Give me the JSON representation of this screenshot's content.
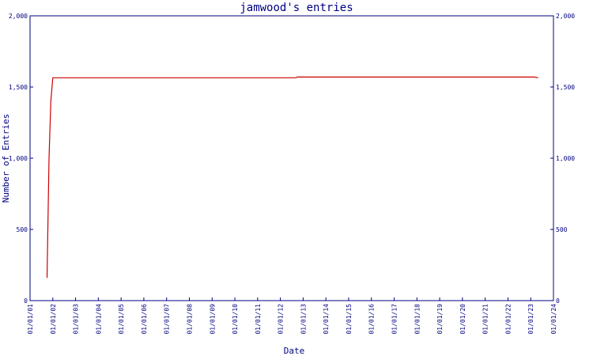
{
  "chart_data": {
    "type": "line",
    "title": "jamwood's entries",
    "xlabel": "Date",
    "ylabel": "Number of Entries",
    "x_tick_labels": [
      "01/01/01",
      "01/01/02",
      "01/01/03",
      "01/01/04",
      "01/01/05",
      "01/01/06",
      "01/01/07",
      "01/01/08",
      "01/01/09",
      "01/01/10",
      "01/01/11",
      "01/01/12",
      "01/01/13",
      "01/01/14",
      "01/01/15",
      "01/01/16",
      "01/01/17",
      "01/01/18",
      "01/01/19",
      "01/01/20",
      "01/01/21",
      "01/01/22",
      "01/01/23",
      "01/01/24"
    ],
    "y_tick_labels": [
      "0",
      "500",
      "1,000",
      "1,500",
      "2,000"
    ],
    "y_ticks": [
      0,
      500,
      1000,
      1500,
      2000
    ],
    "ylim": [
      0,
      2000
    ],
    "xlim": [
      "2001-01-01",
      "2024-01-01"
    ],
    "grid": false,
    "series": [
      {
        "color": "#cc0000",
        "points": [
          {
            "x": "2001-10-01",
            "y": 160
          },
          {
            "x": "2001-11-01",
            "y": 1000
          },
          {
            "x": "2001-12-01",
            "y": 1400
          },
          {
            "x": "2002-01-01",
            "y": 1565
          },
          {
            "x": "2005-01-01",
            "y": 1565
          },
          {
            "x": "2012-09-01",
            "y": 1565
          },
          {
            "x": "2012-10-01",
            "y": 1570
          },
          {
            "x": "2023-03-01",
            "y": 1570
          },
          {
            "x": "2023-05-01",
            "y": 1565
          }
        ]
      }
    ]
  }
}
